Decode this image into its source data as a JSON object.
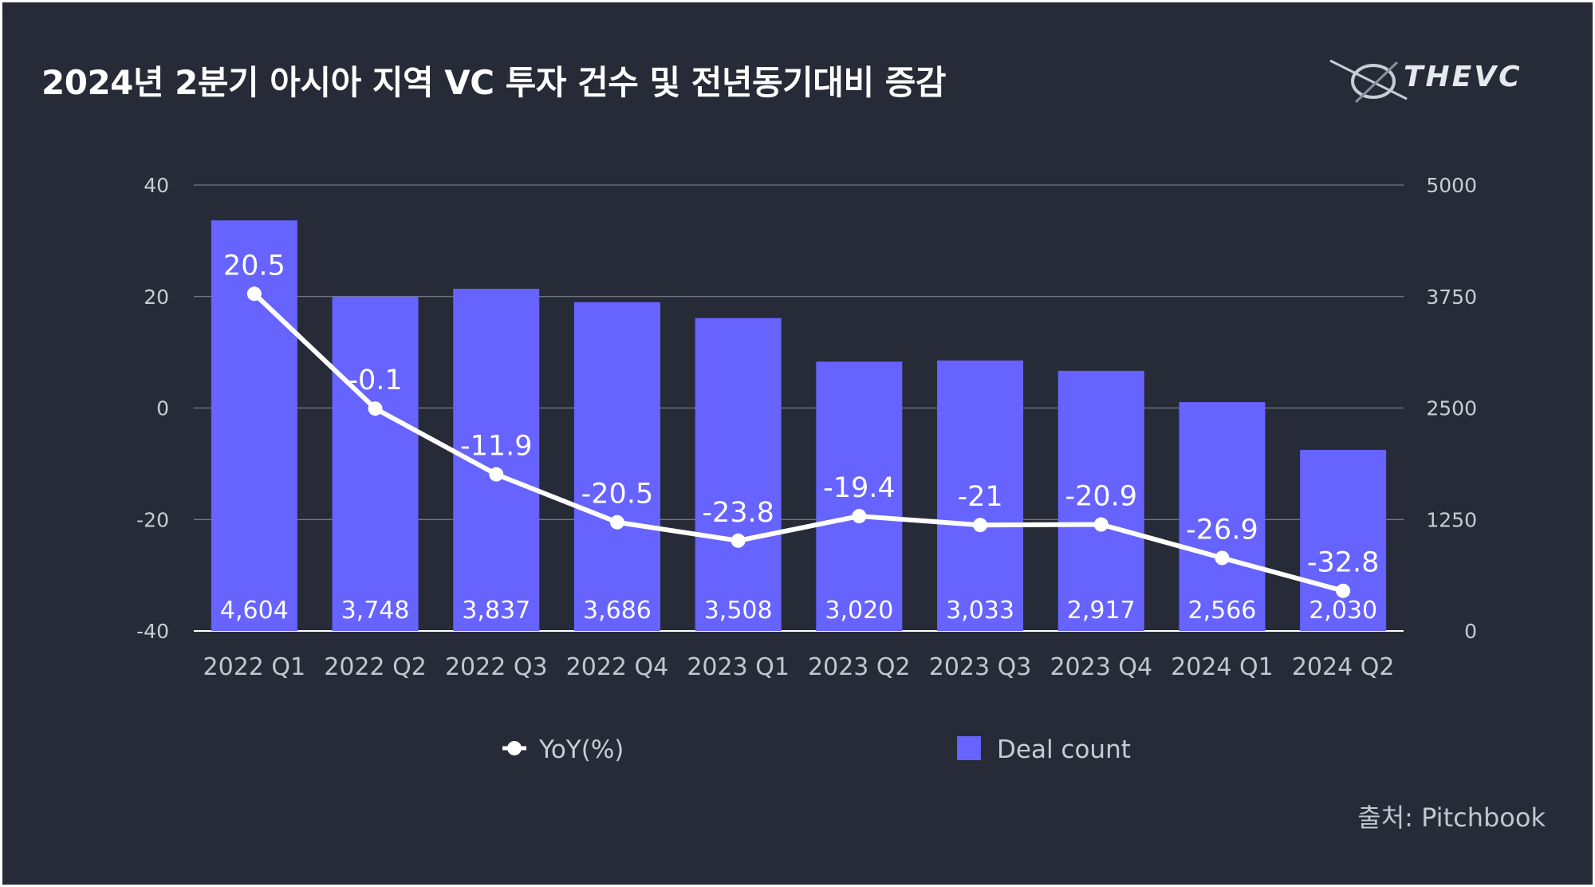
{
  "header": {
    "title": "2024년 2분기 아시아 지역 VC 투자 건수 및 전년동기대비 증감",
    "logo_text": "THEVC"
  },
  "source": "출처: Pitchbook",
  "colors": {
    "background": "#262b37",
    "bar": "#6663ff",
    "line": "#ffffff",
    "grid": "#8a8f9a",
    "text": "#c9ccd3"
  },
  "chart_data": {
    "type": "bar+line",
    "categories": [
      "2022 Q1",
      "2022 Q2",
      "2022 Q3",
      "2022 Q4",
      "2023 Q1",
      "2023 Q2",
      "2023 Q3",
      "2023 Q4",
      "2024 Q1",
      "2024 Q2"
    ],
    "series": [
      {
        "name": "Deal count",
        "type": "bar",
        "axis": "right",
        "values": [
          4604,
          3748,
          3837,
          3686,
          3508,
          3020,
          3033,
          2917,
          2566,
          2030
        ],
        "labels": [
          "4,604",
          "3,748",
          "3,837",
          "3,686",
          "3,508",
          "3,020",
          "3,033",
          "2,917",
          "2,566",
          "2,030"
        ]
      },
      {
        "name": "YoY(%)",
        "type": "line",
        "axis": "left",
        "values": [
          20.5,
          -0.1,
          -11.9,
          -20.5,
          -23.8,
          -19.4,
          -21,
          -20.9,
          -26.9,
          -32.8
        ],
        "labels": [
          "20.5",
          "-0.1",
          "-11.9",
          "-20.5",
          "-23.8",
          "-19.4",
          "-21",
          "-20.9",
          "-26.9",
          "-32.8"
        ]
      }
    ],
    "left_axis": {
      "min": -40,
      "max": 40,
      "ticks": [
        "40",
        "20",
        "0",
        "-20",
        "-40"
      ]
    },
    "right_axis": {
      "min": 0,
      "max": 5000,
      "ticks": [
        "5000",
        "3750",
        "2500",
        "1250",
        "0"
      ]
    },
    "legend": {
      "position": "bottom",
      "items": [
        "YoY(%)",
        "Deal count"
      ]
    },
    "grid": true
  }
}
